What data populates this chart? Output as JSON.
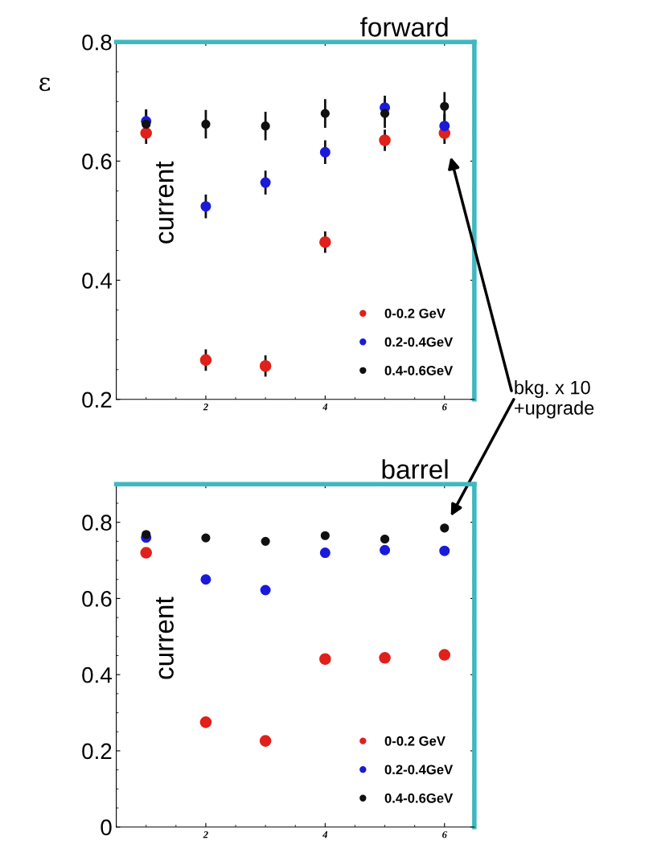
{
  "chart_data": [
    {
      "type": "scatter",
      "title": "forward",
      "ylabel": "ε",
      "x": [
        1,
        2,
        3,
        4,
        5,
        6
      ],
      "xlim": [
        0.5,
        6.5
      ],
      "xticks": [
        2,
        4,
        6
      ],
      "ylim": [
        0.2,
        0.8
      ],
      "yticks": [
        0.2,
        0.4,
        0.6,
        0.8
      ],
      "marker": "circle",
      "legend": "bottom right",
      "grid": false,
      "annotations": [
        "current",
        "bkg. x 10\n+upgrade"
      ],
      "series": [
        {
          "name": "0-0.2 GeV",
          "color": "#e0201b",
          "values": [
            0.647,
            0.266,
            0.256,
            0.464,
            0.635,
            0.647
          ],
          "errors": [
            0.018,
            0.018,
            0.018,
            0.018,
            0.018,
            0.018
          ]
        },
        {
          "name": "0.2-0.4GeV",
          "color": "#1a1adb",
          "values": [
            0.667,
            0.524,
            0.564,
            0.615,
            0.69,
            0.659
          ],
          "errors": [
            0.02,
            0.02,
            0.02,
            0.02,
            0.02,
            0.02
          ]
        },
        {
          "name": "0.4-0.6GeV",
          "color": "#111111",
          "values": [
            0.662,
            0.662,
            0.659,
            0.68,
            0.68,
            0.692
          ],
          "errors": [
            0.024,
            0.024,
            0.024,
            0.024,
            0.024,
            0.024
          ]
        }
      ]
    },
    {
      "type": "scatter",
      "title": "barrel",
      "x": [
        1,
        2,
        3,
        4,
        5,
        6
      ],
      "xlim": [
        0.5,
        6.5
      ],
      "xticks": [
        2,
        4,
        6
      ],
      "ylim": [
        0,
        0.9
      ],
      "yticks": [
        0,
        0.2,
        0.4,
        0.6,
        0.8
      ],
      "marker": "circle",
      "legend": "bottom right",
      "grid": false,
      "annotations": [
        "current"
      ],
      "series": [
        {
          "name": "0-0.2 GeV",
          "color": "#e0201b",
          "values": [
            0.72,
            0.275,
            0.226,
            0.441,
            0.444,
            0.452
          ]
        },
        {
          "name": "0.2-0.4GeV",
          "color": "#1a1adb",
          "values": [
            0.76,
            0.65,
            0.622,
            0.72,
            0.727,
            0.725
          ]
        },
        {
          "name": "0.4-0.6GeV",
          "color": "#111111",
          "values": [
            0.768,
            0.759,
            0.75,
            0.765,
            0.756,
            0.785
          ]
        }
      ]
    }
  ]
}
